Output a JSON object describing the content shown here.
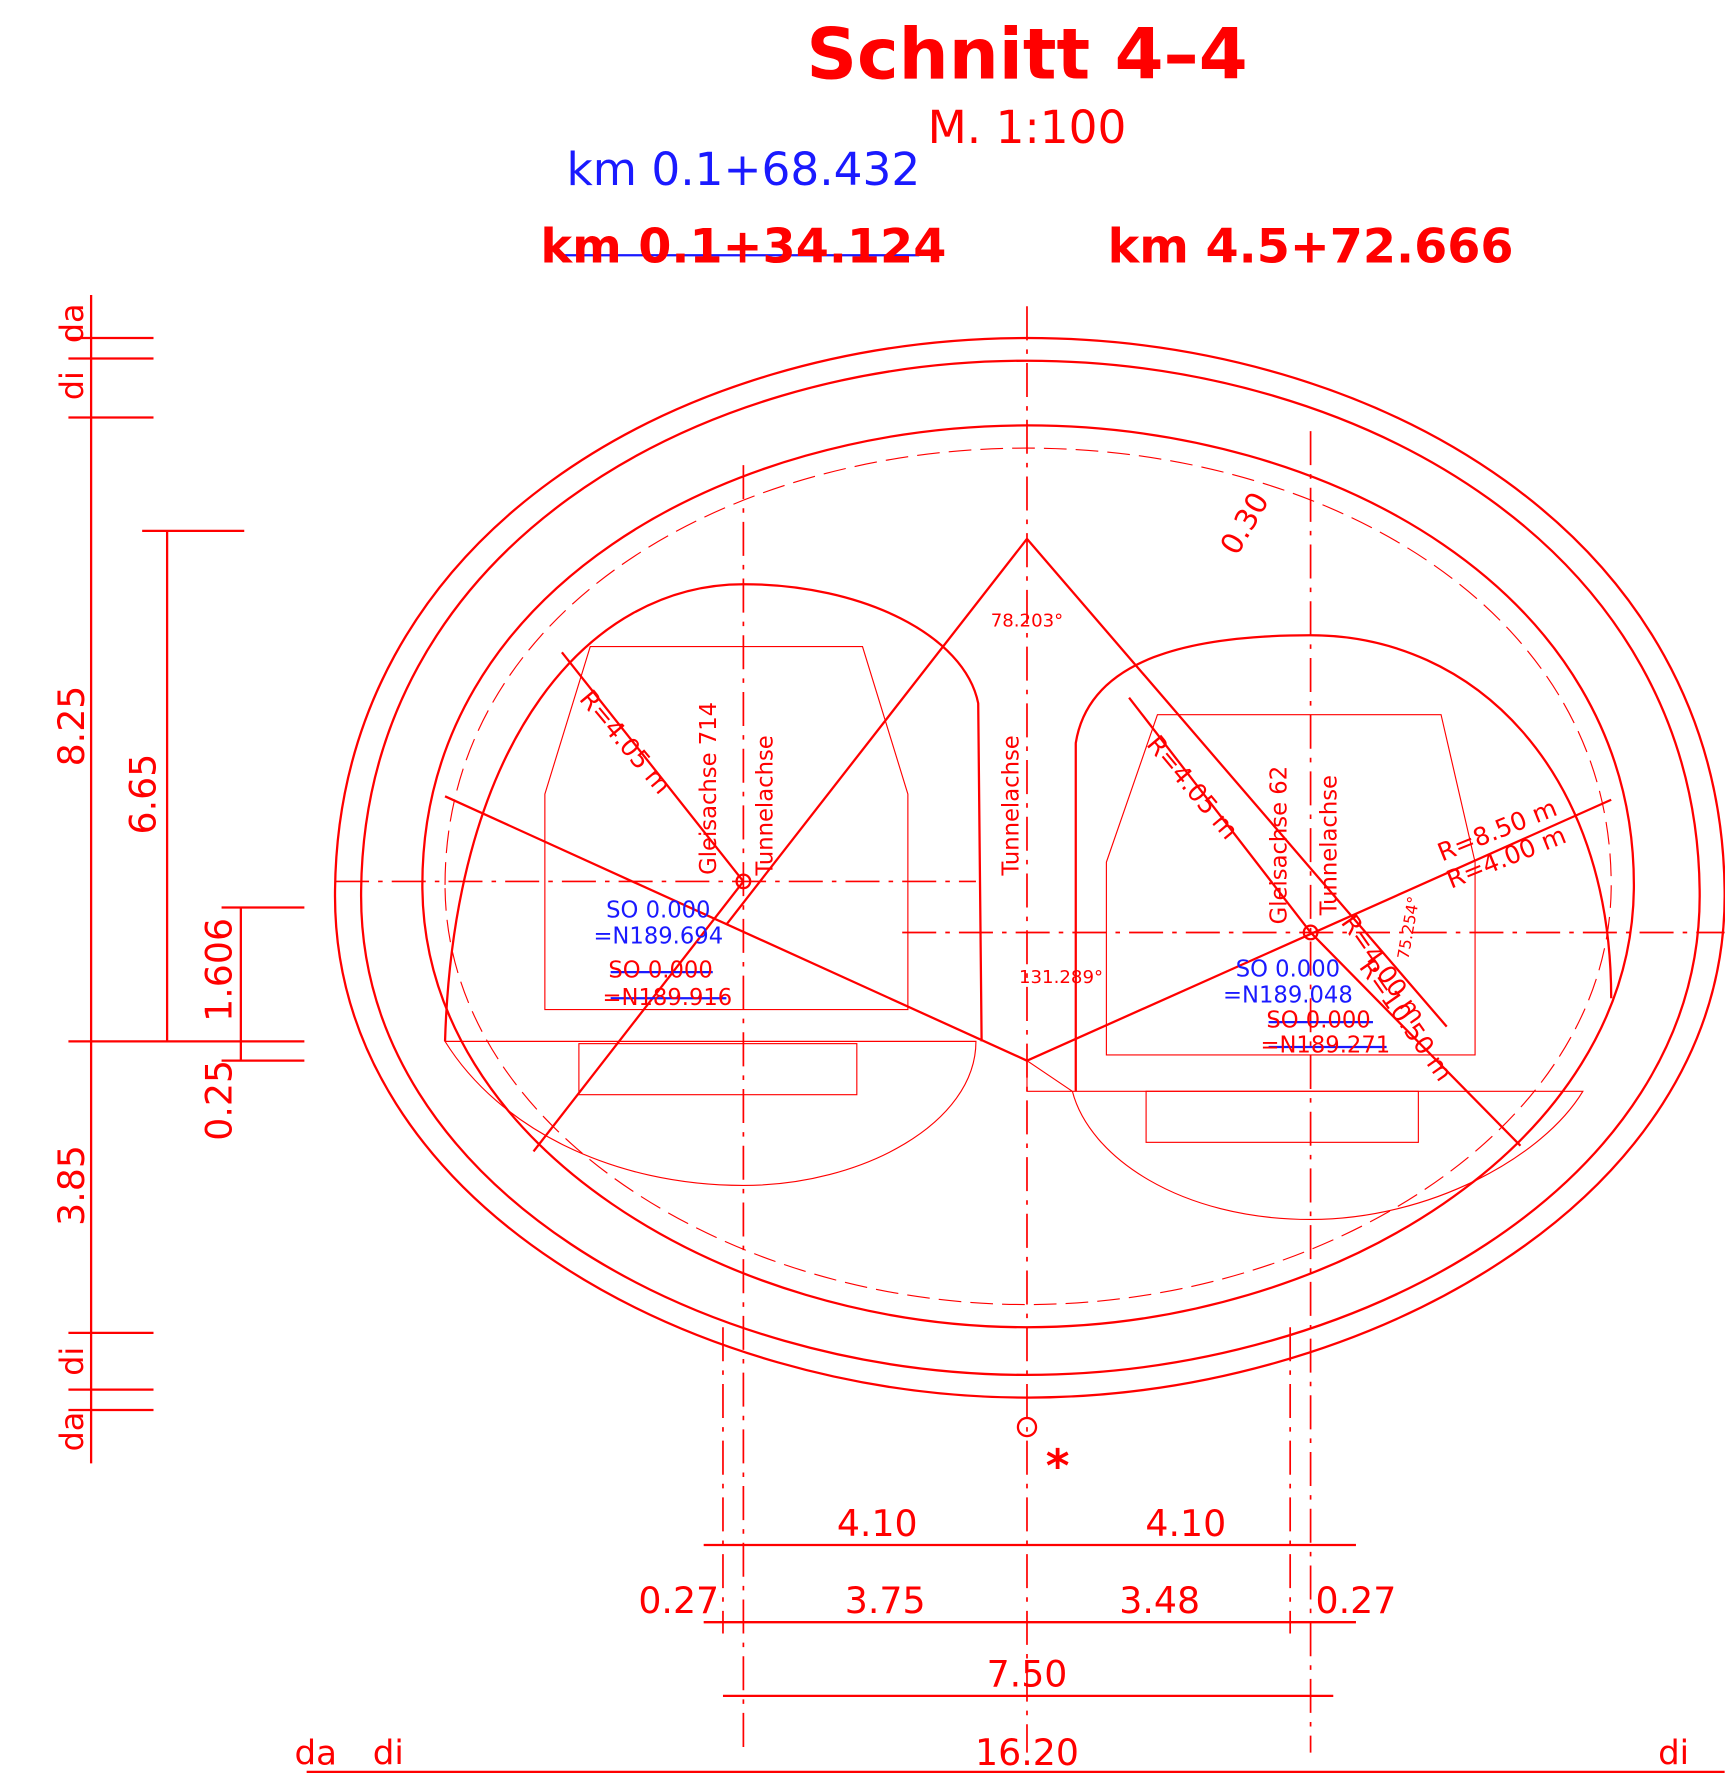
{
  "header": {
    "title": "Schnitt 4–4",
    "scale": "M. 1:100",
    "station_blue": "km 0.1+68.432",
    "station_struck": "km 0.1+34.124",
    "station_red": "km 4.5+72.666"
  },
  "left_dimensions": [
    "da",
    "di",
    "8.25",
    "6.65",
    "1.606",
    "0.25",
    "3.85",
    "di",
    "da"
  ],
  "bottom_dimensions": [
    "4.10",
    "4.10",
    "0.27",
    "3.75",
    "3.48",
    "0.27",
    "7.50",
    "da",
    "di",
    "16.20",
    "di"
  ],
  "annotations": {
    "radius_left": "R=4.05 m",
    "track_left": "Gleisachse 714",
    "tunnel_axis_left": "Tunnelachse",
    "tunnel_axis_center": "Tunnelachse",
    "radius_right": "R=4.05 m",
    "track_right": "Gleisachse 62",
    "tunnel_axis_right": "Tunnelachse",
    "thickness": "0.30",
    "angle_top": "78.203°",
    "radius_outer": "R=8.50 m",
    "radius_outer_inner": "R=4.00 m",
    "angle_right": "75.254°",
    "radius_lower": "R=4.00 m",
    "radius_large": "R=10.50 m",
    "angle_center": "131.289°",
    "marker": "*"
  },
  "elevations": {
    "left_so": "SO 0.000",
    "left_n": "=N189.694",
    "left_so_old": "SO 0.000",
    "left_n_old": "=N189.916",
    "right_so": "SO 0.000",
    "right_n": "=N189.048",
    "right_so_old": "SO 0.000",
    "right_n_old": "=N189.271"
  }
}
